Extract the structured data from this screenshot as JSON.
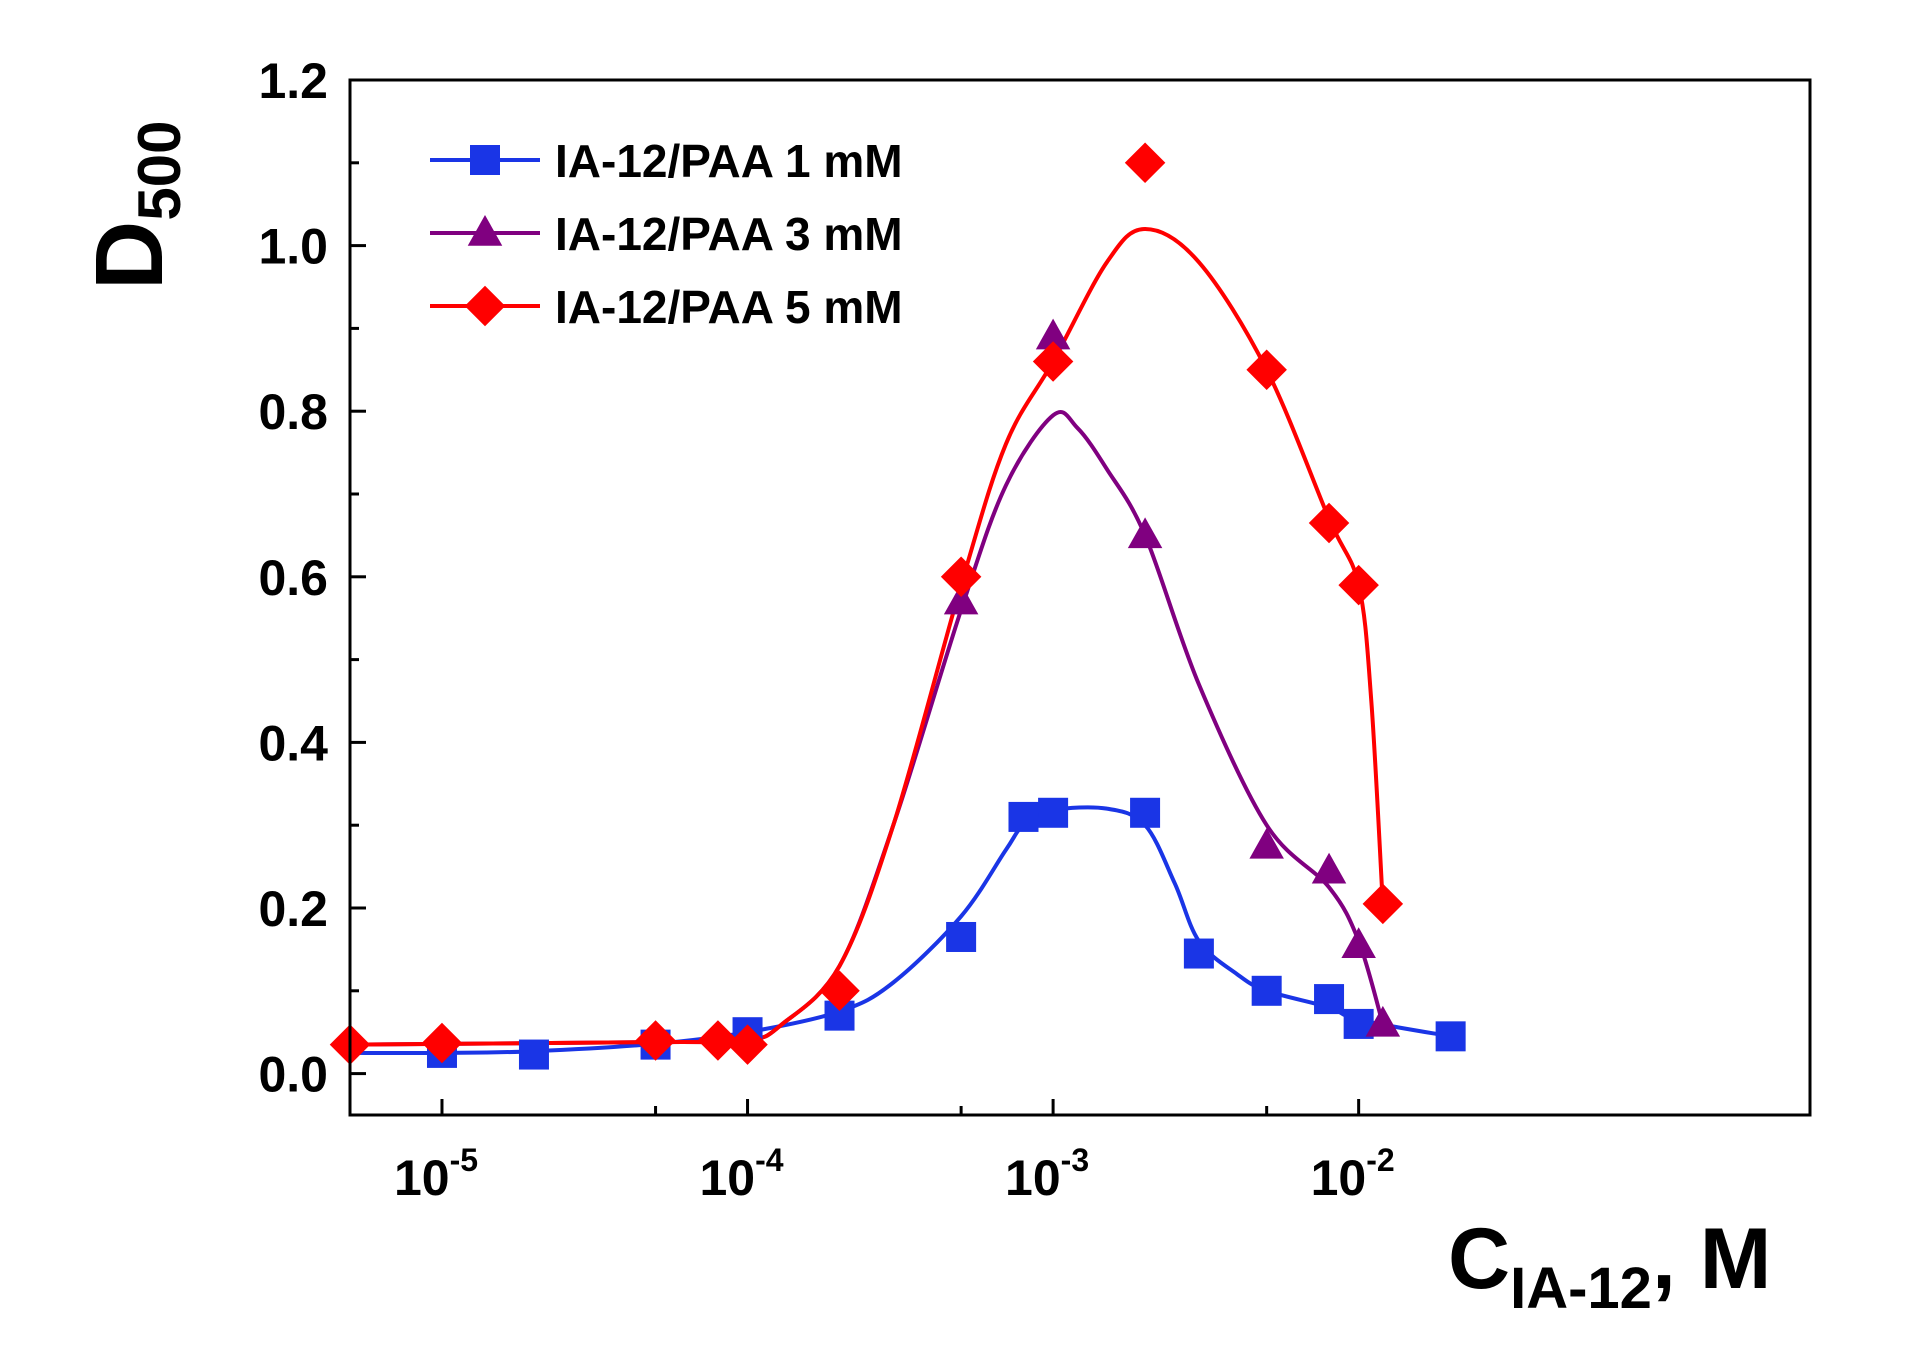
{
  "chart_data": {
    "type": "line",
    "xscale": "log",
    "xlim": [
      5e-06,
      0.3
    ],
    "ylim": [
      -0.05,
      1.2
    ],
    "xlabel": {
      "main": "C",
      "sub": "IA-12",
      "suffix": ", M"
    },
    "ylabel": {
      "main": "D",
      "sub": "500"
    },
    "x_ticks": [
      {
        "value": 1e-05,
        "base": "10",
        "exp": "-5"
      },
      {
        "value": 0.0001,
        "base": "10",
        "exp": "-4"
      },
      {
        "value": 0.001,
        "base": "10",
        "exp": "-3"
      },
      {
        "value": 0.01,
        "base": "10",
        "exp": "-2"
      }
    ],
    "y_ticks": [
      {
        "value": 0.0,
        "label": "0.0"
      },
      {
        "value": 0.2,
        "label": "0.2"
      },
      {
        "value": 0.4,
        "label": "0.4"
      },
      {
        "value": 0.6,
        "label": "0.6"
      },
      {
        "value": 0.8,
        "label": "0.8"
      },
      {
        "value": 1.0,
        "label": "1.0"
      },
      {
        "value": 1.2,
        "label": "1.2"
      }
    ],
    "legend_position": "top-left",
    "series": [
      {
        "name": "IA-12/PAA 1 mM",
        "color": "#1a35e6",
        "marker": "square",
        "x": [
          1e-05,
          2e-05,
          5e-05,
          0.0001,
          0.0002,
          0.0005,
          0.0008,
          0.001,
          0.002,
          0.003,
          0.005,
          0.008,
          0.01,
          0.02
        ],
        "y": [
          0.025,
          0.023,
          0.035,
          0.05,
          0.07,
          0.165,
          0.31,
          0.315,
          0.315,
          0.145,
          0.1,
          0.09,
          0.06,
          0.045
        ],
        "curve": [
          [
            5e-06,
            0.025
          ],
          [
            1e-05,
            0.025
          ],
          [
            2e-05,
            0.027
          ],
          [
            5e-05,
            0.036
          ],
          [
            0.0001,
            0.05
          ],
          [
            0.0002,
            0.075
          ],
          [
            0.0003,
            0.11
          ],
          [
            0.0005,
            0.19
          ],
          [
            0.0007,
            0.27
          ],
          [
            0.0008,
            0.3
          ],
          [
            0.001,
            0.318
          ],
          [
            0.0015,
            0.32
          ],
          [
            0.002,
            0.3
          ],
          [
            0.0025,
            0.23
          ],
          [
            0.003,
            0.16
          ],
          [
            0.004,
            0.12
          ],
          [
            0.005,
            0.1
          ],
          [
            0.008,
            0.08
          ],
          [
            0.01,
            0.065
          ],
          [
            0.02,
            0.045
          ]
        ]
      },
      {
        "name": "IA-12/PAA 3 mM",
        "color": "#800080",
        "marker": "triangle",
        "x": [
          0.0005,
          0.001,
          0.002,
          0.005,
          0.008,
          0.01,
          0.012
        ],
        "y": [
          0.57,
          0.89,
          0.65,
          0.275,
          0.245,
          0.155,
          0.06
        ],
        "curve": [
          [
            5e-06,
            0.035
          ],
          [
            5e-05,
            0.038
          ],
          [
            0.0001,
            0.04
          ],
          [
            0.00013,
            0.06
          ],
          [
            0.0002,
            0.13
          ],
          [
            0.0003,
            0.3
          ],
          [
            0.0005,
            0.56
          ],
          [
            0.0007,
            0.71
          ],
          [
            0.001,
            0.795
          ],
          [
            0.0012,
            0.78
          ],
          [
            0.0015,
            0.73
          ],
          [
            0.002,
            0.65
          ],
          [
            0.003,
            0.47
          ],
          [
            0.005,
            0.3
          ],
          [
            0.008,
            0.225
          ],
          [
            0.01,
            0.16
          ],
          [
            0.012,
            0.06
          ]
        ]
      },
      {
        "name": "IA-12/PAA 5 mM",
        "color": "#ff0000",
        "marker": "diamond",
        "x": [
          5e-06,
          1e-05,
          5e-05,
          8e-05,
          0.0001,
          0.0002,
          0.0005,
          0.001,
          0.002,
          0.005,
          0.008,
          0.01,
          0.012
        ],
        "y": [
          0.035,
          0.037,
          0.04,
          0.04,
          0.035,
          0.1,
          0.6,
          0.86,
          1.1,
          0.85,
          0.665,
          0.59,
          0.205
        ],
        "curve": [
          [
            5e-06,
            0.035
          ],
          [
            5e-05,
            0.038
          ],
          [
            0.0001,
            0.04
          ],
          [
            0.00013,
            0.06
          ],
          [
            0.0002,
            0.13
          ],
          [
            0.0003,
            0.3
          ],
          [
            0.0005,
            0.59
          ],
          [
            0.0007,
            0.76
          ],
          [
            0.001,
            0.86
          ],
          [
            0.0015,
            0.98
          ],
          [
            0.002,
            1.02
          ],
          [
            0.003,
            0.98
          ],
          [
            0.005,
            0.85
          ],
          [
            0.008,
            0.67
          ],
          [
            0.01,
            0.59
          ],
          [
            0.011,
            0.45
          ],
          [
            0.012,
            0.205
          ]
        ]
      }
    ]
  }
}
